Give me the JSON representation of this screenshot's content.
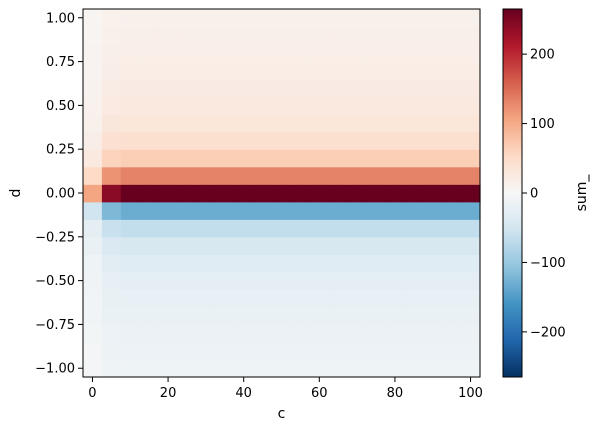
{
  "chart_data": {
    "type": "heatmap",
    "title": "",
    "xlabel": "c",
    "ylabel": "d",
    "colorbar_label": "sum_",
    "colormap": "RdBu_r",
    "colormap_stops": [
      "#053061",
      "#2166ac",
      "#4393c3",
      "#92c5de",
      "#d1e5f0",
      "#f7f7f7",
      "#fddbc7",
      "#f4a582",
      "#d6604d",
      "#b2182b",
      "#67001f"
    ],
    "xlim": [
      -2.5,
      102.5
    ],
    "ylim": [
      -1.05,
      1.05
    ],
    "vlim": [
      -265,
      265
    ],
    "x_ticks": [
      0,
      20,
      40,
      60,
      80,
      100
    ],
    "x_tick_labels": [
      "0",
      "20",
      "40",
      "60",
      "80",
      "100"
    ],
    "y_ticks": [
      1.0,
      0.75,
      0.5,
      0.25,
      0.0,
      -0.25,
      -0.5,
      -0.75,
      -1.0
    ],
    "y_tick_labels": [
      "1.00",
      "0.75",
      "0.50",
      "0.25",
      "0.00",
      "−0.25",
      "−0.50",
      "−0.75",
      "−1.00"
    ],
    "colorbar_ticks": [
      200,
      100,
      0,
      -100,
      -200
    ],
    "colorbar_tick_labels": [
      "200",
      "100",
      "0",
      "−100",
      "−200"
    ],
    "x": [
      0,
      5,
      10,
      15,
      20,
      25,
      30,
      35,
      40,
      45,
      50,
      55,
      60,
      65,
      70,
      75,
      80,
      85,
      90,
      95,
      100
    ],
    "y": [
      -1.0,
      -0.9,
      -0.8,
      -0.7,
      -0.6,
      -0.5,
      -0.4,
      -0.3,
      -0.2,
      -0.1,
      0.0,
      0.1,
      0.2,
      0.3,
      0.4,
      0.5,
      0.6,
      0.7,
      0.8,
      0.9,
      1.0
    ],
    "row_values": [
      -13,
      -15,
      -17,
      -19,
      -22,
      -26,
      -32,
      -44,
      -66,
      -132,
      265,
      132,
      66,
      44,
      32,
      26,
      22,
      19,
      17,
      15,
      13
    ],
    "first_column_values": [
      -5,
      -6,
      -7,
      -8,
      -9,
      -11,
      -13,
      -18,
      -27,
      -53,
      106,
      53,
      27,
      18,
      13,
      11,
      9,
      8,
      7,
      6,
      5
    ],
    "second_column_values": [
      -12,
      -14,
      -16,
      -18,
      -21,
      -24,
      -30,
      -41,
      -60,
      -120,
      240,
      120,
      60,
      41,
      30,
      24,
      21,
      18,
      16,
      14,
      12
    ]
  }
}
